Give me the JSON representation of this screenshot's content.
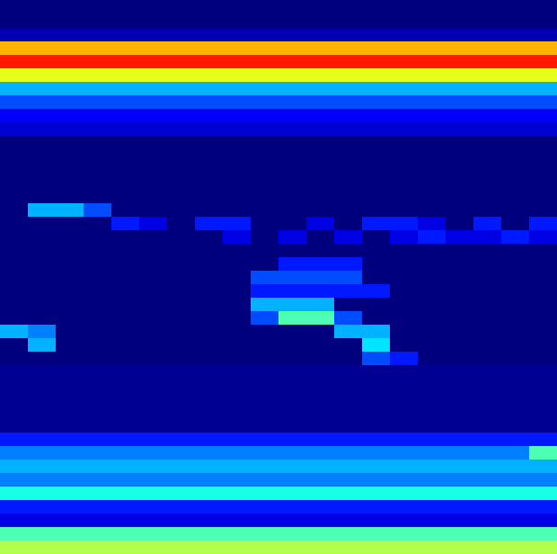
{
  "chart_data": {
    "type": "heatmap",
    "tick_labels": false,
    "zlim": [
      0,
      1
    ],
    "cells": [
      [
        0,
        0,
        0,
        0,
        0,
        0,
        0,
        0,
        0,
        0,
        0,
        0,
        0,
        0,
        0,
        0,
        0,
        0,
        0,
        0
      ],
      [
        0,
        0,
        0,
        0,
        0,
        0,
        0,
        0,
        0,
        0,
        0,
        0,
        0,
        0,
        0,
        0,
        0,
        0,
        0,
        0
      ],
      [
        0.05,
        0.05,
        0.05,
        0.05,
        0.05,
        0.05,
        0.05,
        0.05,
        0.05,
        0.05,
        0.05,
        0.05,
        0.05,
        0.05,
        0.05,
        0.05,
        0.05,
        0.05,
        0.05,
        0.05
      ],
      [
        0.7,
        0.7,
        0.7,
        0.7,
        0.7,
        0.7,
        0.7,
        0.7,
        0.7,
        0.7,
        0.7,
        0.7,
        0.7,
        0.7,
        0.7,
        0.7,
        0.7,
        0.7,
        0.7,
        0.7
      ],
      [
        0.85,
        0.85,
        0.85,
        0.85,
        0.85,
        0.85,
        0.85,
        0.85,
        0.85,
        0.85,
        0.85,
        0.85,
        0.85,
        0.85,
        0.85,
        0.85,
        0.85,
        0.85,
        0.85,
        0.85
      ],
      [
        0.6,
        0.6,
        0.6,
        0.6,
        0.6,
        0.6,
        0.6,
        0.6,
        0.6,
        0.6,
        0.6,
        0.6,
        0.6,
        0.6,
        0.6,
        0.6,
        0.6,
        0.6,
        0.6,
        0.6
      ],
      [
        0.3,
        0.3,
        0.3,
        0.3,
        0.3,
        0.3,
        0.3,
        0.3,
        0.3,
        0.3,
        0.3,
        0.3,
        0.3,
        0.3,
        0.3,
        0.3,
        0.3,
        0.3,
        0.3,
        0.3
      ],
      [
        0.2,
        0.2,
        0.2,
        0.2,
        0.2,
        0.2,
        0.2,
        0.2,
        0.2,
        0.2,
        0.2,
        0.2,
        0.2,
        0.2,
        0.2,
        0.2,
        0.2,
        0.2,
        0.2,
        0.2
      ],
      [
        0.12,
        0.12,
        0.12,
        0.12,
        0.12,
        0.12,
        0.12,
        0.12,
        0.12,
        0.12,
        0.12,
        0.12,
        0.12,
        0.12,
        0.12,
        0.12,
        0.12,
        0.12,
        0.12,
        0.12
      ],
      [
        0.08,
        0.08,
        0.08,
        0.08,
        0.08,
        0.08,
        0.08,
        0.08,
        0.08,
        0.08,
        0.08,
        0.08,
        0.08,
        0.08,
        0.08,
        0.08,
        0.08,
        0.08,
        0.08,
        0.08
      ],
      [
        0,
        0,
        0,
        0,
        0,
        0,
        0,
        0,
        0,
        0,
        0,
        0,
        0,
        0,
        0,
        0,
        0,
        0,
        0,
        0
      ],
      [
        0,
        0,
        0,
        0,
        0,
        0,
        0,
        0,
        0,
        0,
        0,
        0,
        0,
        0,
        0,
        0,
        0,
        0,
        0,
        0
      ],
      [
        0,
        0,
        0,
        0,
        0,
        0,
        0,
        0,
        0,
        0,
        0,
        0,
        0,
        0,
        0,
        0,
        0,
        0,
        0,
        0
      ],
      [
        0,
        0,
        0,
        0,
        0,
        0,
        0,
        0,
        0,
        0,
        0,
        0,
        0,
        0,
        0,
        0,
        0,
        0,
        0,
        0
      ],
      [
        0,
        0,
        0,
        0,
        0,
        0,
        0,
        0,
        0,
        0,
        0,
        0,
        0,
        0,
        0,
        0,
        0,
        0,
        0,
        0
      ],
      [
        0,
        0.3,
        0.3,
        0.2,
        0,
        0,
        0,
        0,
        0,
        0,
        0,
        0,
        0,
        0,
        0,
        0,
        0,
        0,
        0,
        0
      ],
      [
        0,
        0,
        0,
        0,
        0.15,
        0.1,
        0,
        0.15,
        0.15,
        0,
        0,
        0.1,
        0,
        0.15,
        0.15,
        0.1,
        0,
        0.15,
        0,
        0.15
      ],
      [
        0,
        0,
        0,
        0,
        0,
        0,
        0,
        0,
        0.1,
        0,
        0.1,
        0,
        0.1,
        0,
        0.1,
        0.15,
        0.1,
        0.1,
        0.15,
        0.1
      ],
      [
        0,
        0,
        0,
        0,
        0,
        0,
        0,
        0,
        0,
        0,
        0,
        0,
        0,
        0,
        0,
        0,
        0,
        0,
        0,
        0
      ],
      [
        0,
        0,
        0,
        0,
        0,
        0,
        0,
        0,
        0,
        0,
        0.15,
        0.15,
        0.15,
        0,
        0,
        0,
        0,
        0,
        0,
        0
      ],
      [
        0,
        0,
        0,
        0,
        0,
        0,
        0,
        0,
        0,
        0.2,
        0.2,
        0.2,
        0.2,
        0,
        0,
        0,
        0,
        0,
        0,
        0
      ],
      [
        0,
        0,
        0,
        0,
        0,
        0,
        0,
        0,
        0,
        0.15,
        0.15,
        0.15,
        0.15,
        0.15,
        0,
        0,
        0,
        0,
        0,
        0
      ],
      [
        0,
        0,
        0,
        0,
        0,
        0,
        0,
        0,
        0,
        0.3,
        0.3,
        0.3,
        0,
        0,
        0,
        0,
        0,
        0,
        0,
        0
      ],
      [
        0,
        0,
        0,
        0,
        0,
        0,
        0,
        0,
        0,
        0.2,
        0.45,
        0.45,
        0.2,
        0,
        0,
        0,
        0,
        0,
        0,
        0
      ],
      [
        0.3,
        0.25,
        0,
        0,
        0,
        0,
        0,
        0,
        0,
        0,
        0,
        0,
        0.3,
        0.3,
        0,
        0,
        0,
        0,
        0,
        0
      ],
      [
        0,
        0.3,
        0,
        0,
        0,
        0,
        0,
        0,
        0,
        0,
        0,
        0,
        0,
        0.35,
        0,
        0,
        0,
        0,
        0,
        0
      ],
      [
        0,
        0,
        0,
        0,
        0,
        0,
        0,
        0,
        0,
        0,
        0,
        0,
        0,
        0.2,
        0.15,
        0,
        0,
        0,
        0,
        0
      ],
      [
        0.02,
        0.02,
        0.02,
        0.02,
        0.02,
        0.02,
        0.02,
        0.02,
        0.02,
        0.02,
        0.02,
        0.02,
        0.02,
        0.02,
        0.02,
        0.02,
        0.02,
        0.02,
        0.02,
        0.02
      ],
      [
        0.02,
        0.02,
        0.02,
        0.02,
        0.02,
        0.02,
        0.02,
        0.02,
        0.02,
        0.02,
        0.02,
        0.02,
        0.02,
        0.02,
        0.02,
        0.02,
        0.02,
        0.02,
        0.02,
        0.02
      ],
      [
        0.02,
        0.02,
        0.02,
        0.02,
        0.02,
        0.02,
        0.02,
        0.02,
        0.02,
        0.02,
        0.02,
        0.02,
        0.02,
        0.02,
        0.02,
        0.02,
        0.02,
        0.02,
        0.02,
        0.02
      ],
      [
        0.02,
        0.02,
        0.02,
        0.02,
        0.02,
        0.02,
        0.02,
        0.02,
        0.02,
        0.02,
        0.02,
        0.02,
        0.02,
        0.02,
        0.02,
        0.02,
        0.02,
        0.02,
        0.02,
        0.02
      ],
      [
        0.02,
        0.02,
        0.02,
        0.02,
        0.02,
        0.02,
        0.02,
        0.02,
        0.02,
        0.02,
        0.02,
        0.02,
        0.02,
        0.02,
        0.02,
        0.02,
        0.02,
        0.02,
        0.02,
        0.02
      ],
      [
        0.15,
        0.15,
        0.15,
        0.15,
        0.15,
        0.15,
        0.15,
        0.15,
        0.15,
        0.15,
        0.15,
        0.15,
        0.15,
        0.15,
        0.15,
        0.15,
        0.15,
        0.15,
        0.15,
        0.15
      ],
      [
        0.25,
        0.25,
        0.25,
        0.25,
        0.25,
        0.25,
        0.25,
        0.25,
        0.25,
        0.25,
        0.25,
        0.25,
        0.25,
        0.25,
        0.25,
        0.25,
        0.25,
        0.25,
        0.25,
        0.45
      ],
      [
        0.3,
        0.3,
        0.3,
        0.3,
        0.3,
        0.3,
        0.3,
        0.3,
        0.3,
        0.3,
        0.3,
        0.3,
        0.3,
        0.3,
        0.3,
        0.3,
        0.3,
        0.3,
        0.3,
        0.3
      ],
      [
        0.25,
        0.25,
        0.25,
        0.25,
        0.25,
        0.25,
        0.25,
        0.25,
        0.25,
        0.25,
        0.25,
        0.25,
        0.25,
        0.25,
        0.25,
        0.25,
        0.25,
        0.25,
        0.25,
        0.25
      ],
      [
        0.4,
        0.4,
        0.4,
        0.4,
        0.4,
        0.4,
        0.4,
        0.4,
        0.4,
        0.4,
        0.4,
        0.4,
        0.4,
        0.4,
        0.4,
        0.4,
        0.4,
        0.4,
        0.4,
        0.4
      ],
      [
        0.15,
        0.15,
        0.15,
        0.15,
        0.15,
        0.15,
        0.15,
        0.15,
        0.15,
        0.15,
        0.15,
        0.15,
        0.15,
        0.15,
        0.15,
        0.15,
        0.15,
        0.15,
        0.15,
        0.15
      ],
      [
        0.1,
        0.1,
        0.1,
        0.1,
        0.1,
        0.1,
        0.1,
        0.1,
        0.1,
        0.1,
        0.1,
        0.1,
        0.1,
        0.1,
        0.1,
        0.1,
        0.1,
        0.1,
        0.1,
        0.1
      ],
      [
        0.45,
        0.45,
        0.45,
        0.45,
        0.45,
        0.45,
        0.45,
        0.45,
        0.45,
        0.45,
        0.45,
        0.45,
        0.45,
        0.45,
        0.45,
        0.45,
        0.45,
        0.45,
        0.45,
        0.45
      ],
      [
        0.55,
        0.55,
        0.55,
        0.55,
        0.55,
        0.55,
        0.55,
        0.55,
        0.55,
        0.55,
        0.55,
        0.55,
        0.55,
        0.55,
        0.55,
        0.55,
        0.55,
        0.55,
        0.55,
        0.55
      ]
    ]
  }
}
